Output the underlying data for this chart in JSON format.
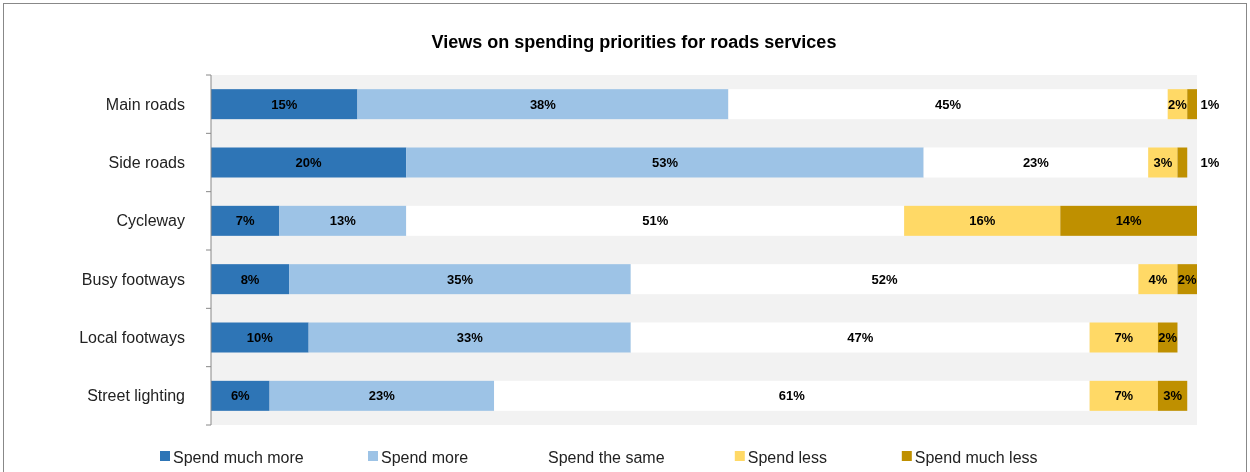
{
  "chart_data": {
    "type": "bar",
    "title": "Views on spending priorities for roads services",
    "orientation": "horizontal",
    "stacked": true,
    "legend": "bottom",
    "grid": false,
    "categories": [
      "Main roads",
      "Side roads",
      "Cycleway",
      "Busy footways",
      "Local footways",
      "Street lighting"
    ],
    "series": [
      {
        "name": "Spend much more",
        "color": "#2e75b6",
        "values": [
          15,
          20,
          7,
          8,
          10,
          6
        ],
        "value_labels": [
          "15%",
          "20%",
          "7%",
          "8%",
          "10%",
          "6%"
        ]
      },
      {
        "name": "Spend more",
        "color": "#9dc3e6",
        "values": [
          38,
          53,
          13,
          35,
          33,
          23
        ],
        "value_labels": [
          "38%",
          "53%",
          "13%",
          "35%",
          "33%",
          "23%"
        ]
      },
      {
        "name": "Spend the same",
        "color": "#ffffff",
        "values": [
          45,
          23,
          51,
          52,
          47,
          61
        ],
        "value_labels": [
          "45%",
          "23%",
          "51%",
          "52%",
          "47%",
          "61%"
        ]
      },
      {
        "name": "Spend less",
        "color": "#ffd966",
        "values": [
          2,
          3,
          16,
          4,
          7,
          7
        ],
        "value_labels": [
          "2%",
          "3%",
          "16%",
          "4%",
          "7%",
          "7%"
        ]
      },
      {
        "name": "Spend much less",
        "color": "#bf9000",
        "values": [
          1,
          1,
          14,
          2,
          2,
          3
        ],
        "value_labels": [
          "1%",
          "1%",
          "14%",
          "2%",
          "2%",
          "3%"
        ]
      }
    ]
  }
}
